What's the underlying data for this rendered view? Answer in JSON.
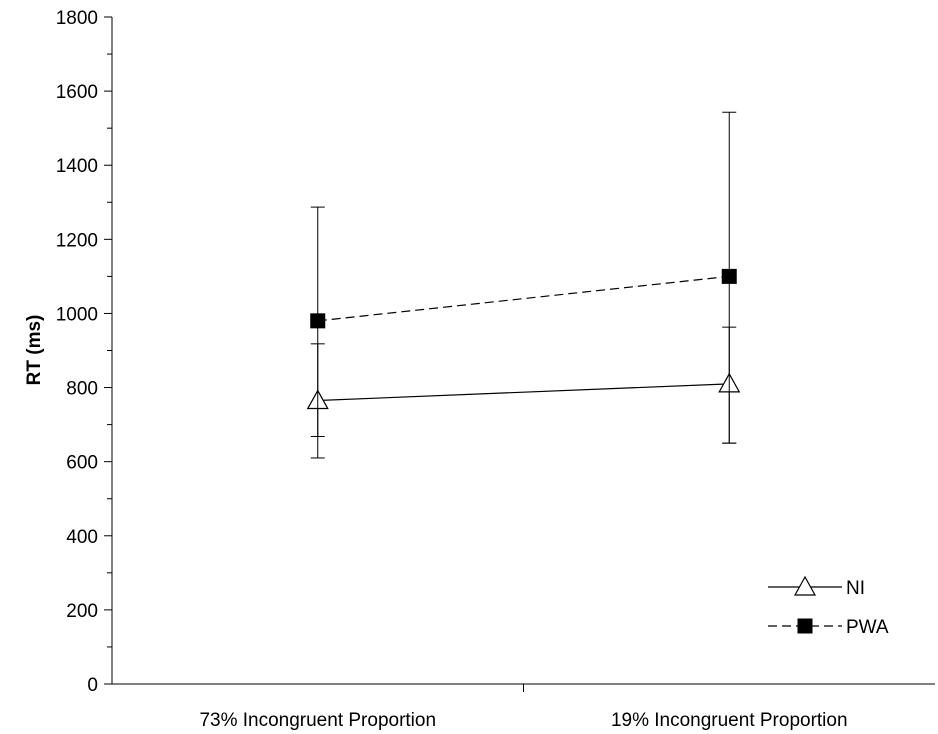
{
  "chart_data": {
    "type": "line",
    "title": "",
    "xlabel": "",
    "ylabel": "RT (ms)",
    "categories": [
      "73% Incongruent Proportion",
      "19% Incongruent Proportion"
    ],
    "ylim": [
      0,
      1800
    ],
    "y_major_ticks": [
      0,
      200,
      400,
      600,
      800,
      1000,
      1200,
      1400,
      1600,
      1800
    ],
    "y_minor_step": 100,
    "grid": false,
    "legend_position": "bottom-right",
    "series": [
      {
        "name": "NI",
        "marker": "open-triangle",
        "line_style": "solid",
        "color": "#000000",
        "values": [
          765,
          810
        ],
        "error_low": [
          610,
          650
        ],
        "error_high": [
          918,
          963
        ]
      },
      {
        "name": "PWA",
        "marker": "filled-square",
        "line_style": "dashed",
        "color": "#000000",
        "values": [
          980,
          1100
        ],
        "error_low": [
          668,
          650
        ],
        "error_high": [
          1287,
          1543
        ]
      }
    ]
  }
}
